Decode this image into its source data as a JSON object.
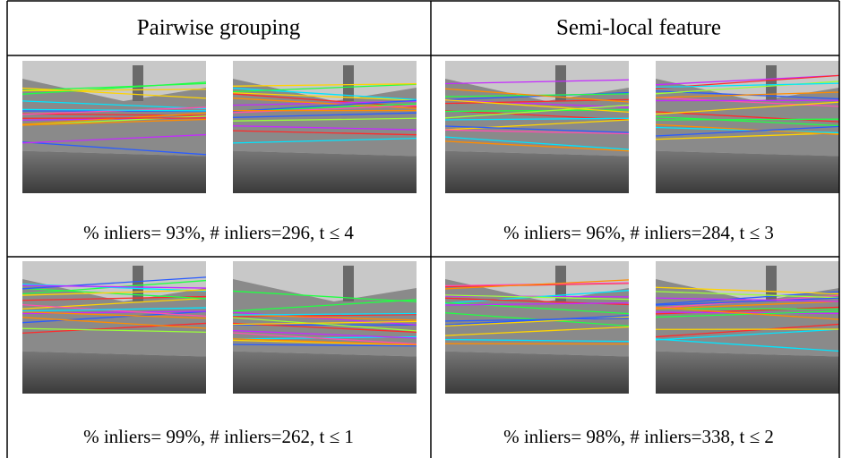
{
  "table": {
    "header": [
      "Pairwise grouping",
      "Semi-local feature"
    ],
    "rows": [
      [
        "% inliers= 93%, # inliers=296, t ≤ 4",
        "% inliers= 96%, # inliers=284, t ≤ 3"
      ],
      [
        "% inliers= 99%, # inliers=262, t ≤ 1",
        "% inliers= 98%, # inliers=338, t ≤ 2"
      ]
    ]
  }
}
